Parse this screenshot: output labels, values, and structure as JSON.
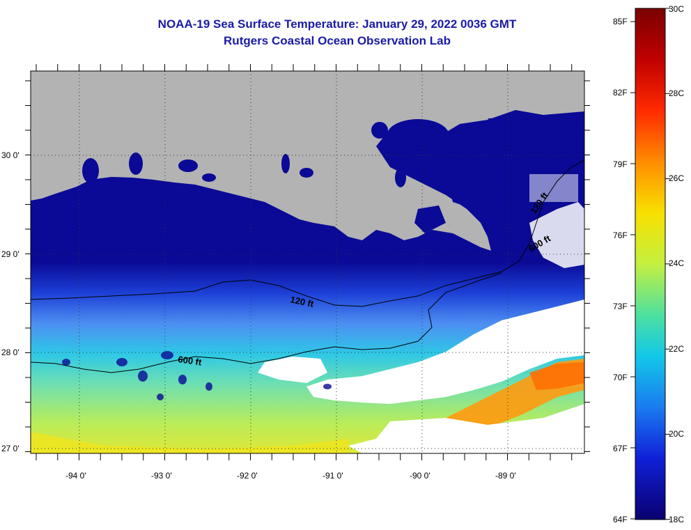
{
  "title": {
    "line1": "NOAA-19 Sea Surface Temperature:  January 29, 2022 0036 GMT",
    "line2": "Rutgers Coastal Ocean Observation Lab"
  },
  "map": {
    "lat_labels": [
      "30 0'",
      "29 0'",
      "28 0'",
      "27 0'"
    ],
    "lon_labels": [
      "-94 0'",
      "-93 0'",
      "-92 0'",
      "-91 0'",
      "-90 0'",
      "-89 0'"
    ],
    "contour_labels": [
      "120 ft",
      "600 ft",
      "120 ft",
      "600 ft"
    ],
    "colors": {
      "land": "#b3b3b3",
      "cloud": "#ffffff",
      "cold_shelf": "#0a0a96",
      "ocean_mid": "#2f6cf0",
      "ocean_cyan": "#2ad3e0",
      "ocean_green": "#9ee86a",
      "ocean_yellow": "#f0e020",
      "ocean_orange": "#ff8c10"
    }
  },
  "colorbar": {
    "fahrenheit_labels": [
      "85F",
      "82F",
      "79F",
      "76F",
      "73F",
      "70F",
      "67F",
      "64F"
    ],
    "celsius_labels": [
      "30C",
      "28C",
      "26C",
      "24C",
      "22C",
      "20C",
      "18C"
    ]
  }
}
